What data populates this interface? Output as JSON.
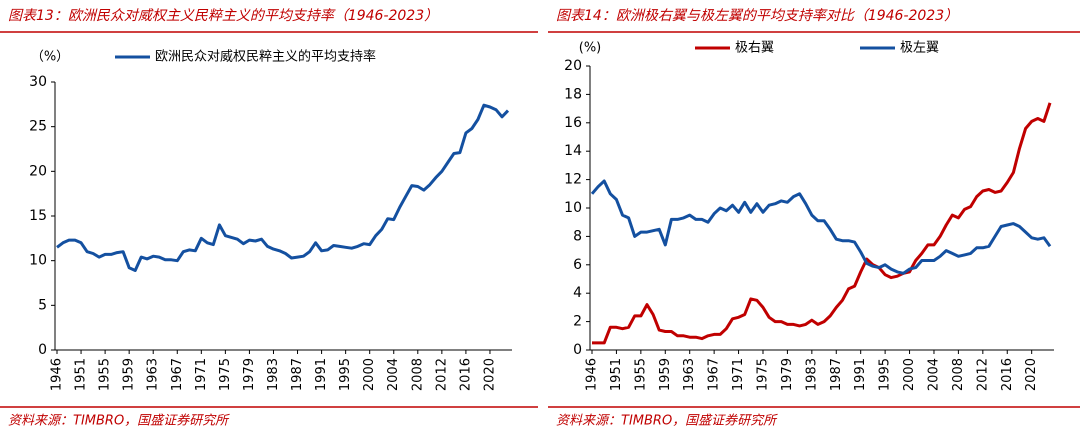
{
  "chart_data": [
    {
      "type": "line",
      "title": "图表13：欧洲民众对威权主义民粹主义的平均支持率（1946-2023）",
      "y_label": "（%）",
      "source": "资料来源：TIMBRO，国盛证券研究所",
      "categories": [
        "1946",
        null,
        null,
        null,
        "1951",
        null,
        null,
        null,
        "1955",
        null,
        null,
        null,
        "1959",
        null,
        null,
        null,
        "1963",
        null,
        null,
        null,
        "1967",
        null,
        null,
        null,
        "1971",
        null,
        null,
        null,
        "1975",
        null,
        null,
        null,
        "1979",
        null,
        null,
        null,
        "1983",
        null,
        null,
        null,
        "1987",
        null,
        null,
        null,
        "1991",
        null,
        null,
        null,
        "1995",
        null,
        null,
        null,
        "2000",
        null,
        null,
        null,
        "2004",
        null,
        null,
        null,
        "2008",
        null,
        null,
        null,
        "2012",
        null,
        null,
        null,
        "2016",
        null,
        null,
        null,
        "2020",
        null,
        null,
        null
      ],
      "series": [
        {
          "name": "欧洲民众对威权民粹主义的平均支持率",
          "color": "#1450a0",
          "values": [
            11.5,
            12.0,
            12.3,
            12.3,
            12.0,
            11.0,
            10.8,
            10.4,
            10.7,
            10.7,
            10.9,
            11.0,
            9.2,
            8.9,
            10.4,
            10.2,
            10.5,
            10.4,
            10.1,
            10.1,
            10.0,
            11.0,
            11.2,
            11.1,
            12.5,
            12.0,
            11.8,
            14.0,
            12.8,
            12.6,
            12.4,
            11.9,
            12.3,
            12.2,
            12.4,
            11.6,
            11.3,
            11.1,
            10.8,
            10.3,
            10.4,
            10.5,
            11.0,
            12.0,
            11.1,
            11.2,
            11.7,
            11.6,
            11.5,
            11.4,
            11.6,
            11.9,
            11.8,
            12.8,
            13.5,
            14.7,
            14.6,
            16.0,
            17.2,
            18.4,
            18.3,
            17.9,
            18.5,
            19.3,
            20.0,
            21.0,
            22.0,
            22.1,
            24.3,
            24.8,
            25.8,
            27.4,
            27.2,
            26.9,
            26.1,
            26.8
          ]
        }
      ],
      "ylim": [
        0,
        30
      ],
      "yticks": [
        0,
        5,
        10,
        15,
        20,
        25,
        30
      ],
      "grid": false
    },
    {
      "type": "line",
      "title": "图表14：欧洲极右翼与极左翼的平均支持率对比（1946-2023）",
      "y_label": "(%)",
      "source": "资料来源：TIMBRO，国盛证券研究所",
      "categories": [
        "1946",
        null,
        null,
        null,
        "1951",
        null,
        null,
        null,
        "1955",
        null,
        null,
        null,
        "1959",
        null,
        null,
        null,
        "1963",
        null,
        null,
        null,
        "1967",
        null,
        null,
        null,
        "1971",
        null,
        null,
        null,
        "1975",
        null,
        null,
        null,
        "1979",
        null,
        null,
        null,
        "1983",
        null,
        null,
        null,
        "1987",
        null,
        null,
        null,
        "1991",
        null,
        null,
        null,
        "1995",
        null,
        null,
        null,
        "2000",
        null,
        null,
        null,
        "2004",
        null,
        null,
        null,
        "2008",
        null,
        null,
        null,
        "2012",
        null,
        null,
        null,
        "2016",
        null,
        null,
        null,
        "2020",
        null,
        null,
        null
      ],
      "series": [
        {
          "name": "极右翼",
          "color": "#c00000",
          "values": [
            0.5,
            0.5,
            0.5,
            1.6,
            1.6,
            1.5,
            1.6,
            2.4,
            2.4,
            3.2,
            2.5,
            1.4,
            1.3,
            1.3,
            1.0,
            1.0,
            0.9,
            0.9,
            0.8,
            1.0,
            1.1,
            1.1,
            1.5,
            2.2,
            2.3,
            2.5,
            3.6,
            3.5,
            3.0,
            2.3,
            2.0,
            2.0,
            1.8,
            1.8,
            1.7,
            1.8,
            2.1,
            1.8,
            2.0,
            2.4,
            3.0,
            3.5,
            4.3,
            4.5,
            5.5,
            6.4,
            6.0,
            5.8,
            5.3,
            5.1,
            5.2,
            5.4,
            5.5,
            6.3,
            6.8,
            7.4,
            7.4,
            8.0,
            8.8,
            9.5,
            9.3,
            9.9,
            10.1,
            10.8,
            11.2,
            11.3,
            11.1,
            11.2,
            11.8,
            12.5,
            14.2,
            15.6,
            16.1,
            16.3,
            16.1,
            17.4
          ]
        },
        {
          "name": "极左翼",
          "color": "#1450a0",
          "values": [
            11.0,
            11.5,
            11.9,
            11.0,
            10.6,
            9.5,
            9.3,
            8.0,
            8.3,
            8.3,
            8.4,
            8.5,
            7.4,
            9.2,
            9.2,
            9.3,
            9.5,
            9.2,
            9.2,
            9.0,
            9.6,
            10.0,
            9.8,
            10.2,
            9.7,
            10.4,
            9.7,
            10.3,
            9.7,
            10.2,
            10.3,
            10.5,
            10.4,
            10.8,
            11.0,
            10.3,
            9.5,
            9.1,
            9.1,
            8.5,
            7.8,
            7.7,
            7.7,
            7.6,
            6.9,
            6.1,
            5.9,
            5.8,
            6.0,
            5.7,
            5.5,
            5.4,
            5.7,
            5.8,
            6.3,
            6.3,
            6.3,
            6.6,
            7.0,
            6.8,
            6.6,
            6.7,
            6.8,
            7.2,
            7.2,
            7.3,
            8.0,
            8.7,
            8.8,
            8.9,
            8.7,
            8.3,
            7.9,
            7.8,
            7.9,
            7.3
          ]
        }
      ],
      "ylim": [
        0,
        20
      ],
      "yticks": [
        0,
        2,
        4,
        6,
        8,
        10,
        12,
        14,
        16,
        18,
        20
      ],
      "grid": false
    }
  ]
}
